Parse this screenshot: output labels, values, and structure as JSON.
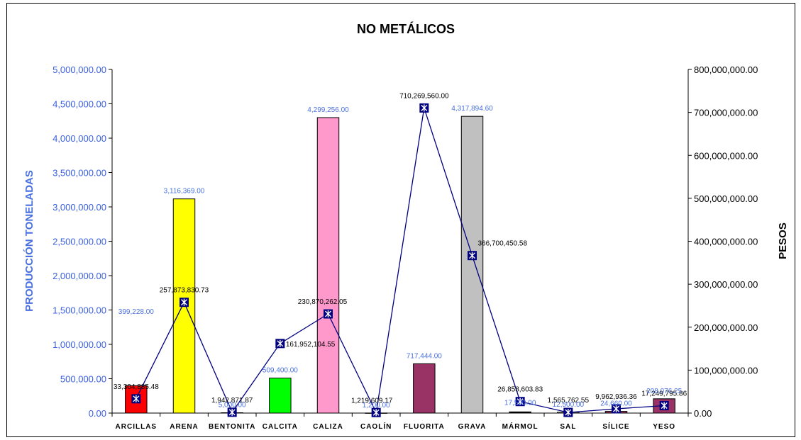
{
  "chart_data": {
    "type": "bar",
    "title": "NO METÁLICOS",
    "ylabel": "PRODUCCIÓN TONELADAS",
    "y2label": "PESOS",
    "ylim": [
      0,
      5000000
    ],
    "y2lim": [
      0,
      800000000
    ],
    "yticks": [
      "0.00",
      "500,000.00",
      "1,000,000.00",
      "1,500,000.00",
      "2,000,000.00",
      "2,500,000.00",
      "3,000,000.00",
      "3,500,000.00",
      "4,000,000.00",
      "4,500,000.00",
      "5,000,000.00"
    ],
    "y2ticks": [
      "0.00",
      "100,000,000.00",
      "200,000,000.00",
      "300,000,000.00",
      "400,000,000.00",
      "500,000,000.00",
      "600,000,000.00",
      "700,000,000.00",
      "800,000,000.00"
    ],
    "categories": [
      "ARCILLAS",
      "ARENA",
      "BENTONITA",
      "CALCITA",
      "CALIZA",
      "CAOLÍN",
      "FLUORITA",
      "GRAVA",
      "MÁRMOL",
      "SAL",
      "SÍLICE",
      "YESO"
    ],
    "bar_colors": [
      "#ff0000",
      "#ffff00",
      "#ffffff",
      "#00ff00",
      "#ff99cc",
      "#3366ff",
      "#993366",
      "#c0c0c0",
      "#000000",
      "#ffffff",
      "#993366",
      "#993366"
    ],
    "series": [
      {
        "axis": "left",
        "kind": "bar",
        "values": [
          399228,
          3116369,
          5000,
          509400,
          4299256,
          1200,
          717444,
          4317894.6,
          17500,
          12500,
          24660,
          208076.25
        ],
        "labels": [
          "399,228.00",
          "3,116,369.00",
          "5,000.00",
          "509,400.00",
          "4,299,256.00",
          "1,200.00",
          "717,444.00",
          "4,317,894.60",
          "17,500.00",
          "12,500.00",
          "24,660.00",
          "208,076.25"
        ]
      },
      {
        "axis": "right",
        "kind": "line",
        "color": "#000080",
        "values": [
          33304885.48,
          257873830.73,
          1942871.87,
          161952104.55,
          230870262.05,
          1219609.17,
          710269560,
          366700450.58,
          26858603.83,
          1565762.55,
          9962936.36,
          17249795.86
        ],
        "labels": [
          "33,304,885.48",
          "257,873,830.73",
          "1,942,871.87",
          "161,952,104.55",
          "230,870,262.05",
          "1,219,609.17",
          "710,269,560.00",
          "366,700,450.58",
          "26,858,603.83",
          "1,565,762.55",
          "9,962,936.36",
          "17,249,795.86"
        ]
      }
    ]
  }
}
